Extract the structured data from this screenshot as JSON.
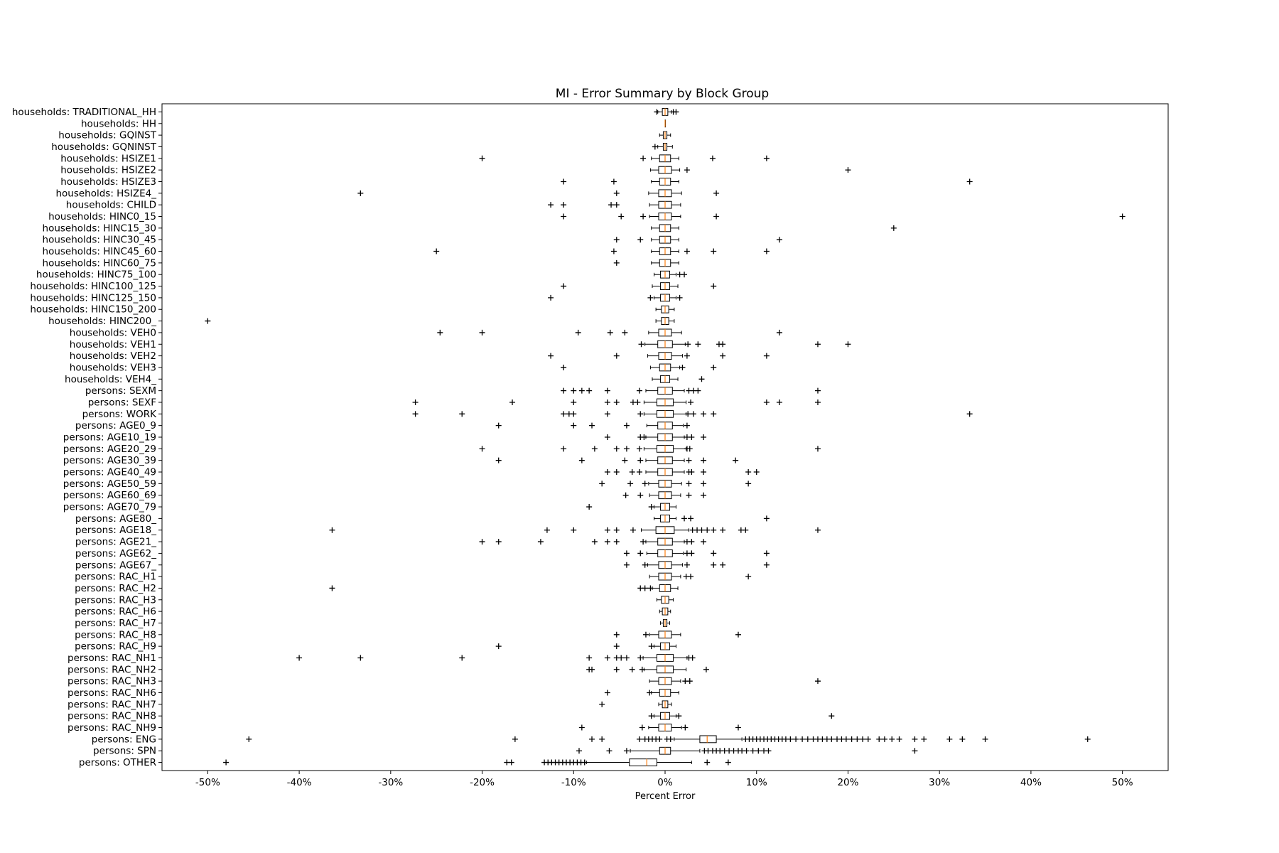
{
  "chart_data": {
    "type": "boxplot",
    "title": "MI - Error Summary by Block Group",
    "xlabel": "Percent Error",
    "ylabel": "",
    "xlim": [
      -55,
      55
    ],
    "xticks": [
      -50,
      -40,
      -30,
      -20,
      -10,
      0,
      10,
      20,
      30,
      40,
      50
    ],
    "xtick_labels": [
      "-50%",
      "-40%",
      "-30%",
      "-20%",
      "-10%",
      "0%",
      "10%",
      "20%",
      "30%",
      "40%",
      "50%"
    ],
    "grid": false,
    "colors": {
      "box": "#000000",
      "median": "#ff7f0e",
      "flier": "#000000"
    },
    "categories": [
      {
        "label": "households: TRADITIONAL_HH",
        "q1": -0.3,
        "median": 0,
        "q3": 0.3,
        "wlo": -0.8,
        "whi": 0.7,
        "fliers": [
          -0.9,
          0.9,
          1.2
        ]
      },
      {
        "label": "households: HH",
        "q1": 0,
        "median": 0,
        "q3": 0,
        "wlo": 0,
        "whi": 0,
        "fliers": []
      },
      {
        "label": "households: GQINST",
        "q1": -0.2,
        "median": 0,
        "q3": 0.2,
        "wlo": -0.6,
        "whi": 0.6,
        "fliers": []
      },
      {
        "label": "households: GQNINST",
        "q1": -0.2,
        "median": 0,
        "q3": 0.2,
        "wlo": -0.8,
        "whi": 0.8,
        "fliers": [
          -1.1
        ]
      },
      {
        "label": "households: HSIZE1",
        "q1": -0.6,
        "median": 0,
        "q3": 0.6,
        "wlo": -1.5,
        "whi": 1.5,
        "fliers": [
          -20,
          -2.4,
          5.2,
          11.1
        ]
      },
      {
        "label": "households: HSIZE2",
        "q1": -0.7,
        "median": 0,
        "q3": 0.7,
        "wlo": -1.6,
        "whi": 1.6,
        "fliers": [
          2.4,
          20
        ]
      },
      {
        "label": "households: HSIZE3",
        "q1": -0.6,
        "median": 0,
        "q3": 0.6,
        "wlo": -1.5,
        "whi": 1.5,
        "fliers": [
          -11.1,
          -5.6,
          33.3
        ]
      },
      {
        "label": "households: HSIZE4_",
        "q1": -0.7,
        "median": 0,
        "q3": 0.7,
        "wlo": -1.8,
        "whi": 1.8,
        "fliers": [
          -33.3,
          -5.3,
          5.6
        ]
      },
      {
        "label": "households: CHILD",
        "q1": -0.7,
        "median": 0,
        "q3": 0.7,
        "wlo": -1.7,
        "whi": 1.7,
        "fliers": [
          -12.5,
          -11.1,
          -5.9,
          -5.3
        ]
      },
      {
        "label": "households: HINC0_15",
        "q1": -0.7,
        "median": 0,
        "q3": 0.7,
        "wlo": -1.7,
        "whi": 1.7,
        "fliers": [
          -11.1,
          -4.8,
          -2.4,
          5.6,
          50
        ]
      },
      {
        "label": "households: HINC15_30",
        "q1": -0.6,
        "median": 0,
        "q3": 0.6,
        "wlo": -1.5,
        "whi": 1.5,
        "fliers": [
          25
        ]
      },
      {
        "label": "households: HINC30_45",
        "q1": -0.6,
        "median": 0,
        "q3": 0.6,
        "wlo": -1.5,
        "whi": 1.5,
        "fliers": [
          -5.3,
          -2.7,
          12.5
        ]
      },
      {
        "label": "households: HINC45_60",
        "q1": -0.6,
        "median": 0,
        "q3": 0.6,
        "wlo": -1.5,
        "whi": 1.5,
        "fliers": [
          -25,
          -5.6,
          2.4,
          5.3,
          11.1
        ]
      },
      {
        "label": "households: HINC60_75",
        "q1": -0.6,
        "median": 0,
        "q3": 0.6,
        "wlo": -1.5,
        "whi": 1.5,
        "fliers": [
          -5.3
        ]
      },
      {
        "label": "households: HINC75_100",
        "q1": -0.5,
        "median": 0,
        "q3": 0.5,
        "wlo": -1.2,
        "whi": 1.2,
        "fliers": [
          1.6,
          2.1
        ]
      },
      {
        "label": "households: HINC100_125",
        "q1": -0.5,
        "median": 0,
        "q3": 0.5,
        "wlo": -1.4,
        "whi": 1.4,
        "fliers": [
          -11.1,
          5.3
        ]
      },
      {
        "label": "households: HINC125_150",
        "q1": -0.5,
        "median": 0,
        "q3": 0.5,
        "wlo": -1.2,
        "whi": 1.2,
        "fliers": [
          -12.5,
          -1.6,
          1.6
        ]
      },
      {
        "label": "households: HINC150_200",
        "q1": -0.4,
        "median": 0,
        "q3": 0.4,
        "wlo": -1.0,
        "whi": 1.0,
        "fliers": []
      },
      {
        "label": "households: HINC200_",
        "q1": -0.4,
        "median": 0,
        "q3": 0.4,
        "wlo": -1.0,
        "whi": 1.0,
        "fliers": [
          -50
        ]
      },
      {
        "label": "households: VEH0",
        "q1": -0.7,
        "median": 0,
        "q3": 0.7,
        "wlo": -1.8,
        "whi": 1.8,
        "fliers": [
          -24.6,
          -20,
          -9.5,
          -6,
          -4.4,
          12.5
        ]
      },
      {
        "label": "households: VEH1",
        "q1": -0.8,
        "median": 0,
        "q3": 0.8,
        "wlo": -2.2,
        "whi": 2.2,
        "fliers": [
          -2.6,
          2.5,
          3.6,
          5.9,
          6.3,
          16.7,
          20
        ]
      },
      {
        "label": "households: VEH2",
        "q1": -0.7,
        "median": 0,
        "q3": 0.7,
        "wlo": -1.9,
        "whi": 1.9,
        "fliers": [
          -12.5,
          -5.3,
          2.4,
          6.3,
          11.1
        ]
      },
      {
        "label": "households: VEH3",
        "q1": -0.6,
        "median": 0,
        "q3": 0.6,
        "wlo": -1.6,
        "whi": 1.6,
        "fliers": [
          -11.1,
          1.9,
          5.3
        ]
      },
      {
        "label": "households: VEH4_",
        "q1": -0.5,
        "median": 0,
        "q3": 0.5,
        "wlo": -1.4,
        "whi": 1.4,
        "fliers": [
          4
        ]
      },
      {
        "label": "persons: SEXM",
        "q1": -0.8,
        "median": 0,
        "q3": 0.8,
        "wlo": -2.1,
        "whi": 2.1,
        "fliers": [
          -11.1,
          -10,
          -9.1,
          -8.3,
          -6.3,
          -2.8,
          2.6,
          3.1,
          3.6,
          16.7
        ]
      },
      {
        "label": "persons: SEXF",
        "q1": -0.9,
        "median": 0,
        "q3": 0.9,
        "wlo": -2.3,
        "whi": 2.3,
        "fliers": [
          -27.3,
          -16.7,
          -10,
          -6.3,
          -5.3,
          -3.5,
          -3,
          2.8,
          11.1,
          12.5,
          16.7
        ]
      },
      {
        "label": "persons: WORK",
        "q1": -0.9,
        "median": 0,
        "q3": 0.9,
        "wlo": -2.3,
        "whi": 2.3,
        "fliers": [
          -27.3,
          -22.2,
          -11.1,
          -10.5,
          -10,
          -6.3,
          -2.7,
          2.5,
          3.1,
          4.2,
          5.3,
          33.3
        ]
      },
      {
        "label": "persons: AGE0_9",
        "q1": -0.8,
        "median": 0,
        "q3": 0.8,
        "wlo": -2.0,
        "whi": 2.0,
        "fliers": [
          -18.2,
          -10,
          -8,
          -4.2,
          2.4
        ]
      },
      {
        "label": "persons: AGE10_19",
        "q1": -0.8,
        "median": 0,
        "q3": 0.8,
        "wlo": -2.1,
        "whi": 2.1,
        "fliers": [
          -6.3,
          -2.7,
          -2.3,
          2.4,
          2.9,
          4.2
        ]
      },
      {
        "label": "persons: AGE20_29",
        "q1": -0.9,
        "median": 0,
        "q3": 0.9,
        "wlo": -2.3,
        "whi": 2.3,
        "fliers": [
          -20,
          -11.1,
          -7.7,
          -5.3,
          -4.2,
          -2.8,
          2.4,
          2.7,
          16.7
        ]
      },
      {
        "label": "persons: AGE30_39",
        "q1": -0.8,
        "median": 0,
        "q3": 0.8,
        "wlo": -2.1,
        "whi": 2.1,
        "fliers": [
          -18.2,
          -9.1,
          -4.4,
          -2.7,
          2.6,
          4.2,
          7.7
        ]
      },
      {
        "label": "persons: AGE40_49",
        "q1": -0.8,
        "median": 0,
        "q3": 0.8,
        "wlo": -2.1,
        "whi": 2.1,
        "fliers": [
          -6.3,
          -5.3,
          -3.6,
          -2.8,
          2.6,
          2.9,
          4.2,
          9.1,
          10
        ]
      },
      {
        "label": "persons: AGE50_59",
        "q1": -0.7,
        "median": 0,
        "q3": 0.7,
        "wlo": -1.8,
        "whi": 1.8,
        "fliers": [
          -6.9,
          -3.8,
          -2.2,
          2.6,
          4.2,
          9.1
        ]
      },
      {
        "label": "persons: AGE60_69",
        "q1": -0.7,
        "median": 0,
        "q3": 0.7,
        "wlo": -1.7,
        "whi": 1.7,
        "fliers": [
          -4.3,
          -2.7,
          2.6,
          4.2
        ]
      },
      {
        "label": "persons: AGE70_79",
        "q1": -0.5,
        "median": 0,
        "q3": 0.5,
        "wlo": -1.2,
        "whi": 1.2,
        "fliers": [
          -8.3,
          -1.5
        ]
      },
      {
        "label": "persons: AGE80_",
        "q1": -0.5,
        "median": 0,
        "q3": 0.5,
        "wlo": -1.2,
        "whi": 1.2,
        "fliers": [
          2.1,
          2.8,
          11.1
        ]
      },
      {
        "label": "persons: AGE18_",
        "q1": -1.0,
        "median": 0,
        "q3": 1.0,
        "wlo": -2.6,
        "whi": 2.6,
        "fliers": [
          -36.4,
          -12.9,
          -10,
          -6.3,
          -5.3,
          -3.5,
          3,
          3.5,
          4,
          4.6,
          5.3,
          6.3,
          8.3,
          8.8,
          16.7
        ]
      },
      {
        "label": "persons: AGE21_",
        "q1": -0.8,
        "median": 0,
        "q3": 0.8,
        "wlo": -2.1,
        "whi": 2.1,
        "fliers": [
          -20,
          -18.2,
          -13.6,
          -7.7,
          -6.3,
          -5.3,
          -2.4,
          2.4,
          2.9,
          4.2
        ]
      },
      {
        "label": "persons: AGE62_",
        "q1": -0.8,
        "median": 0,
        "q3": 0.8,
        "wlo": -2.0,
        "whi": 2.0,
        "fliers": [
          -4.2,
          -2.7,
          2.4,
          2.9,
          5.3,
          11.1
        ]
      },
      {
        "label": "persons: AGE67_",
        "q1": -0.7,
        "median": 0,
        "q3": 0.7,
        "wlo": -1.9,
        "whi": 1.9,
        "fliers": [
          -4.2,
          -2.2,
          2.4,
          5.3,
          6.3,
          11.1
        ]
      },
      {
        "label": "persons: RAC_H1",
        "q1": -0.7,
        "median": 0,
        "q3": 0.7,
        "wlo": -1.7,
        "whi": 1.7,
        "fliers": [
          2.3,
          2.8,
          9.1
        ]
      },
      {
        "label": "persons: RAC_H2",
        "q1": -0.6,
        "median": 0,
        "q3": 0.6,
        "wlo": -1.4,
        "whi": 1.4,
        "fliers": [
          -36.4,
          -2.7,
          -2.2,
          -1.6
        ]
      },
      {
        "label": "persons: RAC_H3",
        "q1": -0.4,
        "median": 0,
        "q3": 0.4,
        "wlo": -0.9,
        "whi": 0.9,
        "fliers": []
      },
      {
        "label": "persons: RAC_H6",
        "q1": -0.3,
        "median": 0,
        "q3": 0.3,
        "wlo": -0.6,
        "whi": 0.6,
        "fliers": []
      },
      {
        "label": "persons: RAC_H7",
        "q1": -0.2,
        "median": 0,
        "q3": 0.2,
        "wlo": -0.5,
        "whi": 0.5,
        "fliers": []
      },
      {
        "label": "persons: RAC_H8",
        "q1": -0.7,
        "median": 0,
        "q3": 0.7,
        "wlo": -1.7,
        "whi": 1.7,
        "fliers": [
          -5.3,
          -2.1,
          8
        ]
      },
      {
        "label": "persons: RAC_H9",
        "q1": -0.5,
        "median": 0,
        "q3": 0.5,
        "wlo": -1.2,
        "whi": 1.2,
        "fliers": [
          -18.2,
          -5.3,
          -1.5
        ]
      },
      {
        "label": "persons: RAC_NH1",
        "q1": -0.9,
        "median": 0,
        "q3": 0.9,
        "wlo": -2.4,
        "whi": 2.4,
        "fliers": [
          -40,
          -33.3,
          -22.2,
          -8.3,
          -6.3,
          -5.3,
          -4.8,
          -4.2,
          -2.7,
          2.6,
          3
        ]
      },
      {
        "label": "persons: RAC_NH2",
        "q1": -0.9,
        "median": 0,
        "q3": 0.9,
        "wlo": -2.3,
        "whi": 2.3,
        "fliers": [
          -8.3,
          -8,
          -5.3,
          -3.6,
          -2.5,
          4.5
        ]
      },
      {
        "label": "persons: RAC_NH3",
        "q1": -0.7,
        "median": 0,
        "q3": 0.7,
        "wlo": -1.7,
        "whi": 1.7,
        "fliers": [
          2.2,
          2.7,
          16.7
        ]
      },
      {
        "label": "persons: RAC_NH6",
        "q1": -0.6,
        "median": 0,
        "q3": 0.6,
        "wlo": -1.5,
        "whi": 1.5,
        "fliers": [
          -6.3,
          -1.7
        ]
      },
      {
        "label": "persons: RAC_NH7",
        "q1": -0.3,
        "median": 0,
        "q3": 0.3,
        "wlo": -0.7,
        "whi": 0.7,
        "fliers": [
          -6.9
        ]
      },
      {
        "label": "persons: RAC_NH8",
        "q1": -0.5,
        "median": 0,
        "q3": 0.5,
        "wlo": -1.2,
        "whi": 1.2,
        "fliers": [
          -1.5,
          1.5,
          18.2
        ]
      },
      {
        "label": "persons: RAC_NH9",
        "q1": -0.7,
        "median": 0,
        "q3": 0.7,
        "wlo": -1.8,
        "whi": 1.8,
        "fliers": [
          -9.1,
          -2.5,
          2.2,
          8
        ]
      },
      {
        "label": "persons: ENG",
        "q1": 3.8,
        "median": 4.6,
        "q3": 5.6,
        "wlo": 1.0,
        "whi": 8.4,
        "fliers": [
          -45.5,
          -16.4,
          -8,
          -6.9,
          -2.8,
          -2.2,
          -1.8,
          -1.4,
          -1.0,
          -0.6,
          0.2,
          0.6,
          8.8,
          9.2,
          9.6,
          10,
          10.4,
          10.8,
          11.2,
          11.6,
          12,
          12.4,
          12.8,
          13.2,
          13.7,
          14.3,
          15,
          15.6,
          16.2,
          16.7,
          17.2,
          17.7,
          18.2,
          18.8,
          19.3,
          19.8,
          20.4,
          21,
          21.6,
          22.2,
          23.4,
          24,
          24.8,
          25.6,
          27.3,
          28.3,
          31.1,
          32.5,
          35,
          46.2
        ]
      },
      {
        "label": "persons: SPN",
        "q1": -0.6,
        "median": 0,
        "q3": 0.6,
        "wlo": -3.8,
        "whi": 3.8,
        "fliers": [
          -9.4,
          -6.1,
          -4.2,
          4.3,
          4.7,
          5.2,
          5.6,
          6,
          6.5,
          7,
          7.5,
          8,
          8.4,
          8.9,
          9.6,
          10.2,
          10.8,
          11.3,
          27.3
        ]
      },
      {
        "label": "persons: OTHER",
        "q1": -3.9,
        "median": -2.0,
        "q3": -0.9,
        "wlo": -8.6,
        "whi": 2.9,
        "fliers": [
          -48,
          -17.3,
          -16.8,
          -13.2,
          -12.8,
          -12.4,
          -12,
          -11.6,
          -11.2,
          -10.8,
          -10.4,
          -10,
          -9.6,
          -9.2,
          -8.8,
          4.6,
          6.9
        ]
      }
    ]
  }
}
